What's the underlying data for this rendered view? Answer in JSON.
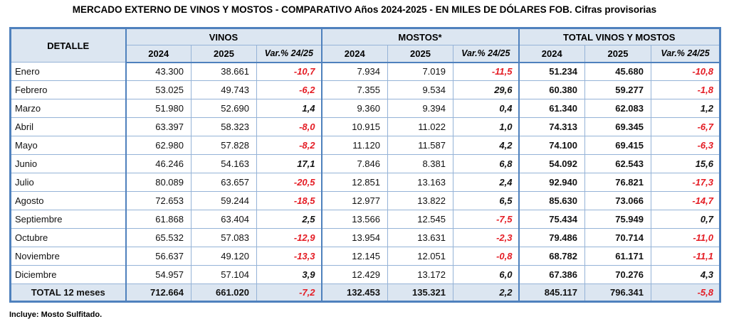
{
  "title": "MERCADO EXTERNO DE VINOS Y MOSTOS - COMPARATIVO Años 2024-2025 - EN MILES DE DÓLARES FOB. Cifras provisorias",
  "footnote": "Incluye: Mosto Sulfitado.",
  "colors": {
    "header_fill": "#dce6f1",
    "border_light": "#95b3d7",
    "border_dark": "#4f81bd",
    "negative_value": "#e41b23",
    "text": "#111111"
  },
  "table": {
    "detalle_header": "DETALLE",
    "groups": [
      {
        "label": "VINOS",
        "cols": [
          "2024",
          "2025",
          "Var.% 24/25"
        ]
      },
      {
        "label": "MOSTOS*",
        "cols": [
          "2024",
          "2025",
          "Var.% 24/25"
        ]
      },
      {
        "label": "TOTAL VINOS Y MOSTOS",
        "cols": [
          "2024",
          "2025",
          "Var.% 24/25"
        ]
      }
    ],
    "rows": [
      {
        "month": "Enero",
        "vinos": [
          "43.300",
          "38.661",
          "-10,7"
        ],
        "mostos": [
          "7.934",
          "7.019",
          "-11,5"
        ],
        "total": [
          "51.234",
          "45.680",
          "-10,8"
        ]
      },
      {
        "month": "Febrero",
        "vinos": [
          "53.025",
          "49.743",
          "-6,2"
        ],
        "mostos": [
          "7.355",
          "9.534",
          "29,6"
        ],
        "total": [
          "60.380",
          "59.277",
          "-1,8"
        ]
      },
      {
        "month": "Marzo",
        "vinos": [
          "51.980",
          "52.690",
          "1,4"
        ],
        "mostos": [
          "9.360",
          "9.394",
          "0,4"
        ],
        "total": [
          "61.340",
          "62.083",
          "1,2"
        ]
      },
      {
        "month": "Abril",
        "vinos": [
          "63.397",
          "58.323",
          "-8,0"
        ],
        "mostos": [
          "10.915",
          "11.022",
          "1,0"
        ],
        "total": [
          "74.313",
          "69.345",
          "-6,7"
        ]
      },
      {
        "month": "Mayo",
        "vinos": [
          "62.980",
          "57.828",
          "-8,2"
        ],
        "mostos": [
          "11.120",
          "11.587",
          "4,2"
        ],
        "total": [
          "74.100",
          "69.415",
          "-6,3"
        ]
      },
      {
        "month": "Junio",
        "vinos": [
          "46.246",
          "54.163",
          "17,1"
        ],
        "mostos": [
          "7.846",
          "8.381",
          "6,8"
        ],
        "total": [
          "54.092",
          "62.543",
          "15,6"
        ]
      },
      {
        "month": "Julio",
        "vinos": [
          "80.089",
          "63.657",
          "-20,5"
        ],
        "mostos": [
          "12.851",
          "13.163",
          "2,4"
        ],
        "total": [
          "92.940",
          "76.821",
          "-17,3"
        ]
      },
      {
        "month": "Agosto",
        "vinos": [
          "72.653",
          "59.244",
          "-18,5"
        ],
        "mostos": [
          "12.977",
          "13.822",
          "6,5"
        ],
        "total": [
          "85.630",
          "73.066",
          "-14,7"
        ]
      },
      {
        "month": "Septiembre",
        "vinos": [
          "61.868",
          "63.404",
          "2,5"
        ],
        "mostos": [
          "13.566",
          "12.545",
          "-7,5"
        ],
        "total": [
          "75.434",
          "75.949",
          "0,7"
        ]
      },
      {
        "month": "Octubre",
        "vinos": [
          "65.532",
          "57.083",
          "-12,9"
        ],
        "mostos": [
          "13.954",
          "13.631",
          "-2,3"
        ],
        "total": [
          "79.486",
          "70.714",
          "-11,0"
        ]
      },
      {
        "month": "Noviembre",
        "vinos": [
          "56.637",
          "49.120",
          "-13,3"
        ],
        "mostos": [
          "12.145",
          "12.051",
          "-0,8"
        ],
        "total": [
          "68.782",
          "61.171",
          "-11,1"
        ]
      },
      {
        "month": "Diciembre",
        "vinos": [
          "54.957",
          "57.104",
          "3,9"
        ],
        "mostos": [
          "12.429",
          "13.172",
          "6,0"
        ],
        "total": [
          "67.386",
          "70.276",
          "4,3"
        ]
      }
    ],
    "total_row": {
      "label": "TOTAL 12 meses",
      "vinos": [
        "712.664",
        "661.020",
        "-7,2"
      ],
      "mostos": [
        "132.453",
        "135.321",
        "2,2"
      ],
      "total": [
        "845.117",
        "796.341",
        "-5,8"
      ]
    }
  }
}
